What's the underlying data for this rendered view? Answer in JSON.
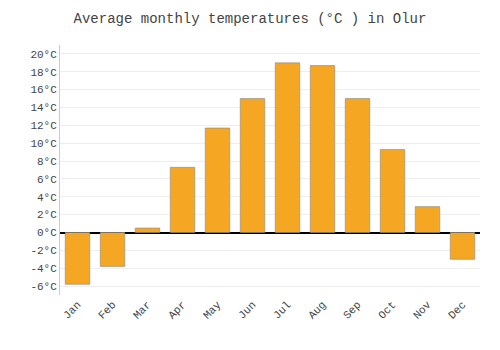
{
  "chart_data": {
    "type": "bar",
    "title": "Average monthly temperatures (°C ) in Olur",
    "categories": [
      "Jan",
      "Feb",
      "Mar",
      "Apr",
      "May",
      "Jun",
      "Jul",
      "Aug",
      "Sep",
      "Oct",
      "Nov",
      "Dec"
    ],
    "values": [
      -5.8,
      -3.8,
      0.5,
      7.3,
      11.7,
      15.0,
      19.0,
      18.7,
      15.0,
      9.3,
      2.9,
      -3.0
    ],
    "color": "#F5A623",
    "ylim": [
      -7,
      21
    ],
    "yticks": [
      {
        "value": -6,
        "label": "-6°C"
      },
      {
        "value": -4,
        "label": "-4°C"
      },
      {
        "value": -2,
        "label": "-2°C"
      },
      {
        "value": 0,
        "label": "0°C"
      },
      {
        "value": 2,
        "label": "2°C"
      },
      {
        "value": 4,
        "label": "4°C"
      },
      {
        "value": 6,
        "label": "6°C"
      },
      {
        "value": 8,
        "label": "8°C"
      },
      {
        "value": 10,
        "label": "10°C"
      },
      {
        "value": 12,
        "label": "12°C"
      },
      {
        "value": 14,
        "label": "14°C"
      },
      {
        "value": 16,
        "label": "16°C"
      },
      {
        "value": 18,
        "label": "18°C"
      },
      {
        "value": 20,
        "label": "20°C"
      }
    ],
    "grid": true
  }
}
